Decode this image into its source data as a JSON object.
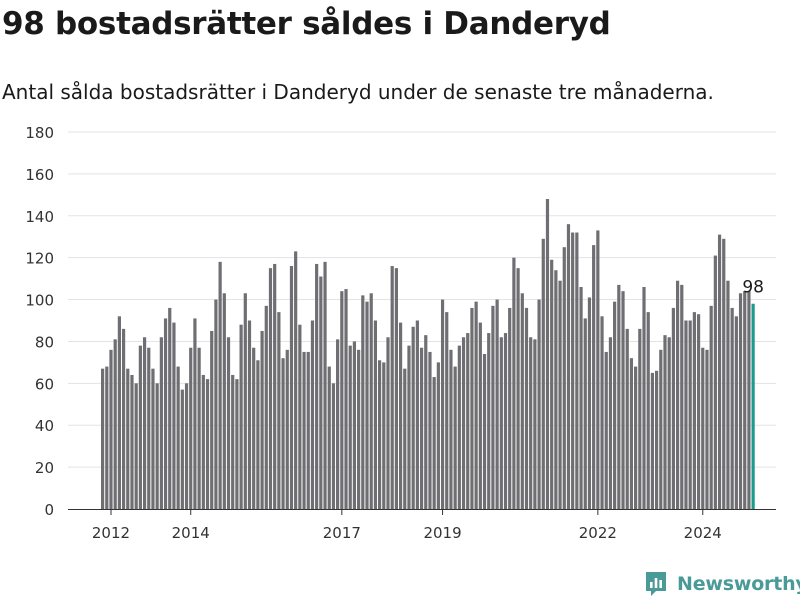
{
  "header": {
    "title": "98 bostadsrätter såldes i Danderyd",
    "subtitle": "Antal sålda bostadsrätter i Danderyd under de senaste tre månaderna."
  },
  "brand": {
    "name": "Newsworthy",
    "logo_icon": "bar-chart-logo-icon",
    "color": "#4a9a98"
  },
  "chart_data": {
    "type": "bar",
    "colors": {
      "bars": "#6e6e73",
      "highlight": "#1a9c8c",
      "grid": "#e3e3e3"
    },
    "ylim": [
      0,
      180
    ],
    "yticks": [
      0,
      20,
      40,
      60,
      80,
      100,
      120,
      140,
      160,
      180
    ],
    "xtick_labels": [
      "2012",
      "2014",
      "2017",
      "2019",
      "2022",
      "2024"
    ],
    "xtick_index": [
      2,
      21,
      57,
      81,
      118,
      143
    ],
    "highlight_label": "98",
    "values": [
      67,
      68,
      76,
      81,
      92,
      86,
      67,
      64,
      60,
      78,
      82,
      77,
      67,
      60,
      82,
      91,
      96,
      89,
      68,
      57,
      60,
      77,
      91,
      77,
      64,
      62,
      85,
      100,
      118,
      103,
      82,
      64,
      62,
      88,
      103,
      90,
      77,
      71,
      85,
      97,
      115,
      117,
      94,
      72,
      76,
      116,
      123,
      88,
      75,
      75,
      90,
      117,
      111,
      118,
      68,
      60,
      81,
      104,
      105,
      78,
      80,
      76,
      102,
      99,
      103,
      90,
      71,
      70,
      82,
      116,
      115,
      89,
      67,
      78,
      87,
      90,
      77,
      83,
      75,
      63,
      70,
      100,
      94,
      76,
      68,
      78,
      82,
      84,
      96,
      99,
      89,
      74,
      84,
      97,
      100,
      82,
      84,
      96,
      120,
      115,
      103,
      96,
      82,
      81,
      100,
      129,
      148,
      119,
      114,
      109,
      125,
      136,
      132,
      132,
      106,
      91,
      101,
      126,
      133,
      92,
      75,
      82,
      99,
      107,
      104,
      86,
      72,
      68,
      86,
      106,
      94,
      65,
      66,
      76,
      83,
      82,
      96,
      109,
      107,
      90,
      90,
      94,
      93,
      77,
      76,
      97,
      121,
      131,
      129,
      109,
      96,
      92,
      103,
      104,
      104,
      98
    ]
  }
}
